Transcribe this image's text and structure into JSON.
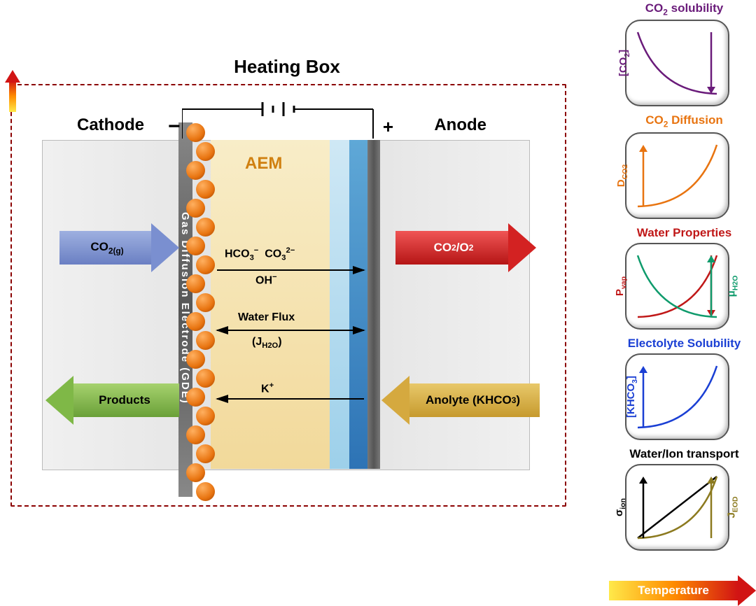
{
  "diagram": {
    "title": "Heating Box",
    "cathode_label": "Cathode",
    "anode_label": "Anode",
    "gde_label": "Gas Diffusion Electrode (GDE)",
    "aem_label": "AEM",
    "arrows": {
      "co2_in": "CO",
      "co2_in_sub": "2(g)",
      "products": "Products",
      "co2_o2": "CO₂/O₂",
      "anolyte": "Anolyte (KHCO₃)"
    },
    "ions": {
      "hco3": "HCO₃⁻",
      "co3": "CO₃²⁻",
      "oh": "OH⁻",
      "waterflux": "Water Flux",
      "jh2o": "(J",
      "jh2o_sub": "H2O",
      "jh2o_end": ")",
      "k": "K⁺"
    },
    "battery": {
      "minus": "−",
      "plus": "+"
    },
    "colors": {
      "heating_border": "#8b0000",
      "gde": "#666666",
      "balls": "#e87410",
      "aem_bg_top": "#f8edc8",
      "aem_bg_bot": "#f2d99a",
      "electrolyte_light": "#9dd0ea",
      "electrolyte_dark": "#2d73b5",
      "co2_arrow": "#7a8fd0",
      "products_arrow": "#7fb847",
      "co2o2_arrow": "#d32222",
      "anolyte_arrow": "#d5a93f"
    }
  },
  "side": {
    "temperature_label": "Temperature",
    "charts": [
      {
        "title": "CO₂ solubility",
        "title_color": "#6a1b7a",
        "ylabel": "[CO₂]",
        "ylabel_color": "#6a1b7a",
        "curve": "decay",
        "curve_color": "#6a1b7a",
        "arrow": "down",
        "arrow_color": "#6a1b7a"
      },
      {
        "title": "CO₂ Diffusion",
        "title_color": "#e87410",
        "ylabel": "D",
        "ylabel_sub": "CO2",
        "ylabel_color": "#e87410",
        "curve": "growth",
        "curve_color": "#e87410",
        "arrow": "up",
        "arrow_color": "#e87410"
      },
      {
        "title": "Water Properties",
        "title_color": "#c01818",
        "ylabel": "P",
        "ylabel_sub": "vap",
        "ylabel_color": "#c01818",
        "ylabel2": "μ",
        "ylabel2_sub": "H2O",
        "ylabel2_color": "#0f9b6c",
        "curves": [
          {
            "type": "growth",
            "color": "#c01818"
          },
          {
            "type": "decay",
            "color": "#0f9b6c"
          }
        ],
        "arrow": "down",
        "arrow_color": "#c01818",
        "arrow2": "up",
        "arrow2_color": "#0f9b6c"
      },
      {
        "title": "Electolyte Solubility",
        "title_color": "#1a3fd4",
        "ylabel": "[KHCO₃]",
        "ylabel_color": "#1a3fd4",
        "curve": "growth",
        "curve_color": "#1a3fd4",
        "arrow": "up",
        "arrow_color": "#1a3fd4"
      },
      {
        "title": "Water/Ion transport",
        "title_color": "#000000",
        "ylabel": "σ",
        "ylabel_sub": "ion",
        "ylabel_color": "#000000",
        "ylabel2": "J",
        "ylabel2_sub": "EOD",
        "ylabel2_color": "#8c7a1f",
        "curves": [
          {
            "type": "line",
            "color": "#000000"
          },
          {
            "type": "growth",
            "color": "#8c7a1f"
          }
        ],
        "arrow": "up",
        "arrow_color": "#000000",
        "arrow2": "up",
        "arrow2_color": "#8c7a1f"
      }
    ]
  }
}
